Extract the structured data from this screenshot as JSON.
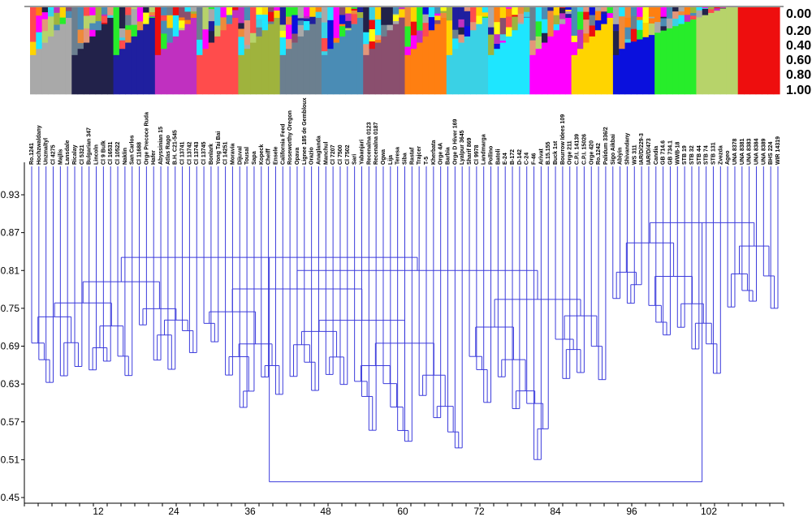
{
  "chart_data": [
    {
      "type": "stacked-bar",
      "title": "",
      "ylim": [
        0,
        1
      ],
      "right_scale_labels": [
        "0.00",
        "0.20",
        "0.40",
        "0.60",
        "0.80",
        "1.00"
      ],
      "palette": [
        "#a9a9a9",
        "#22224a",
        "#1f1f9f",
        "#c030c0",
        "#ff4c4c",
        "#ee8a3a",
        "#9fb33d",
        "#6b7f8f",
        "#4a8cb5",
        "#e3967a",
        "#8a4f6e",
        "#ff7f11",
        "#3ad1e5",
        "#1ee6ff",
        "#ff00ff",
        "#ffd400",
        "#ffff10",
        "#0a10dd",
        "#27ed2a",
        "#b7d36a",
        "#ee0e0e"
      ],
      "block_order": [
        0,
        1,
        2,
        3,
        4,
        6,
        7,
        8,
        10,
        11,
        12,
        13,
        14,
        15,
        17,
        18,
        19,
        20
      ],
      "n_samples": 126
    },
    {
      "type": "dendrogram",
      "ylabel": "",
      "xlabel": "",
      "y_ticks": [
        "0.93",
        "0.87",
        "0.81",
        "0.75",
        "0.69",
        "0.63",
        "0.57",
        "0.51",
        "0.45"
      ],
      "x_ticks": [
        "12",
        "24",
        "36",
        "48",
        "60",
        "72",
        "84",
        "96",
        "102"
      ],
      "leaf_labels": [
        "Ro.1241",
        "Hochzwaldany",
        "Unzmaltyl",
        "Cl 4275",
        "Majlis",
        "Lansdale",
        "Ricalay",
        "Cl 5321",
        "Bulgarian 347",
        "Lincoln",
        "Cl 9 Bulk",
        "Cl 16531",
        "Cl 10522",
        "Naklin",
        "San Carlos",
        "Cl 11688",
        "Orge Precoce Ruda",
        "Hafer",
        "Abyssinian 15",
        "Atlas Rago",
        "B.H. C21-545",
        "Cl 13741",
        "Cl 13742",
        "Cl 13743",
        "Cl 13745",
        "Bonlark",
        "Yong Tai Bai",
        "Cl 14251",
        "Moravia",
        "Dijuval",
        "Tousal",
        "Sapa",
        "Kopeck",
        "Cheiff",
        "Ensele",
        "California Feed",
        "Roseworthy Oregon",
        "Opava",
        "Lignee 185 de Gembloux",
        "Orazio",
        "Anaglanda",
        "Manchul",
        "Cl 7207",
        "Cl 7500",
        "Cl 7502",
        "Sari",
        "Yabanjari",
        "Recenalna 0123",
        "Recenalna 0187",
        "Ogwa",
        "Lija",
        "Teresa",
        "Siba",
        "Rastaf",
        "Trajcer",
        "T-5",
        "Kherbata",
        "Orge 4A",
        "Barbia",
        "Orge D Hiver 169",
        "Lyalpur 3645",
        "Sharif 869",
        "Cl 9978",
        "Landmarga",
        "Pollino",
        "Batoli",
        "E-24",
        "B-172",
        "D-142",
        "C-24",
        "F-46",
        "Arivat",
        "B.15.155",
        "Buck 1st",
        "Bourrow Idees 109",
        "Orge 211",
        "C.P.I. 14139",
        "C.P.I. 15026",
        "Orge 420",
        "Ro.1242",
        "Palidum 336/2",
        "Sigo Aikbai",
        "Abiyin",
        "Shivandany",
        "WS 311",
        "IAR/D/229-3",
        "IAR/D/473",
        "Candia",
        "GB 714.6",
        "GB 734.1",
        "WWB-18",
        "STB 19",
        "STB 32",
        "STB 44",
        "STB 74",
        "STB 131",
        "Zvezda",
        "Ageo",
        "UNA 8378",
        "UNA 8381",
        "UNA 8383",
        "UNA 8384",
        "UNA 8389",
        "BHS 224",
        "WIR 14319"
      ]
    }
  ]
}
